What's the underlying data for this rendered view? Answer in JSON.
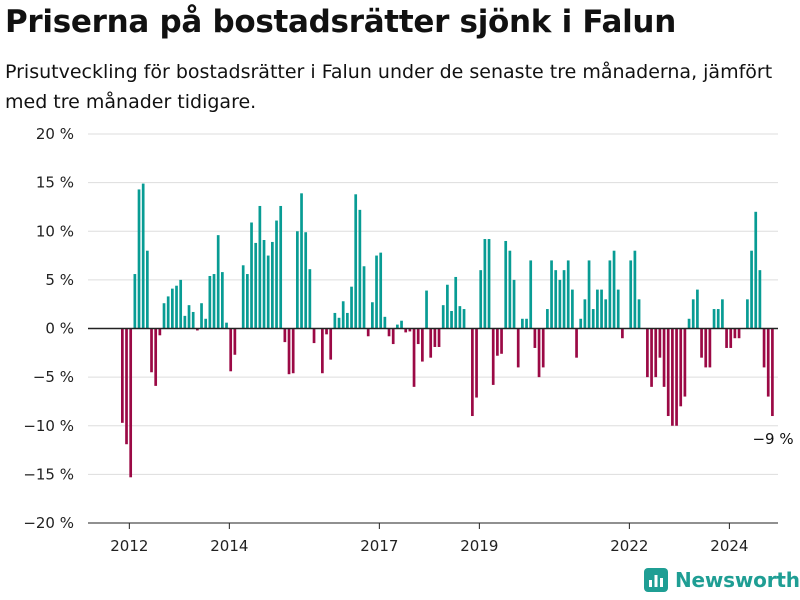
{
  "title": "Priserna på bostadsrätter sjönk i Falun",
  "subtitle": "Prisutveckling för bostadsrätter i Falun under de senaste tre månaderna, jämfört med tre månader tidigare.",
  "brand": {
    "name": "Newsworthy",
    "color": "#1f9e94"
  },
  "colors": {
    "positive": "#089c94",
    "negative": "#9b0945",
    "zero_line": "#222222",
    "grid": "#dddddd"
  },
  "chart_data": {
    "type": "bar",
    "x_start": "2011-11",
    "x_end": "2024-11",
    "x_ticks": [
      {
        "date": "2012-01",
        "label": "2012"
      },
      {
        "date": "2014-01",
        "label": "2014"
      },
      {
        "date": "2017-01",
        "label": "2017"
      },
      {
        "date": "2019-01",
        "label": "2019"
      },
      {
        "date": "2022-01",
        "label": "2022"
      },
      {
        "date": "2024-01",
        "label": "2024"
      }
    ],
    "ylim": [
      -20,
      20
    ],
    "y_ticks": [
      {
        "value": 20,
        "label": "20 %"
      },
      {
        "value": 15,
        "label": "15 %"
      },
      {
        "value": 10,
        "label": "10 %"
      },
      {
        "value": 5,
        "label": "5 %"
      },
      {
        "value": 0,
        "label": "0 %"
      },
      {
        "value": -5,
        "label": "−5 %"
      },
      {
        "value": -10,
        "label": "−10 %"
      },
      {
        "value": -15,
        "label": "−15 %"
      },
      {
        "value": -20,
        "label": "−20 %"
      }
    ],
    "grid": true,
    "annotation": {
      "label": "−9 %"
    },
    "series": [
      {
        "values": [
          -9.7,
          -11.9,
          -15.3,
          5.6,
          14.3,
          14.9,
          8.0,
          -4.5,
          -5.9,
          -0.7,
          2.6,
          3.3,
          4.1,
          4.4,
          5.0,
          1.3,
          2.4,
          1.7,
          -0.2,
          2.6,
          1.0,
          5.4,
          5.6,
          9.6,
          5.8,
          0.6,
          -4.4,
          -2.7,
          0.0,
          6.5,
          5.6,
          10.9,
          8.8,
          12.6,
          9.1,
          7.5,
          8.9,
          11.1,
          12.6,
          -1.4,
          -4.7,
          -4.6,
          10.0,
          13.9,
          9.9,
          6.1,
          -1.5,
          0.0,
          -4.6,
          -0.6,
          -3.2,
          1.6,
          1.1,
          2.8,
          1.6,
          4.3,
          13.8,
          12.2,
          6.4,
          -0.8,
          2.7,
          7.5,
          7.8,
          1.2,
          -0.8,
          -1.6,
          0.4,
          0.8,
          -0.4,
          -0.3,
          -6.0,
          -1.6,
          -3.4,
          3.9,
          -3.0,
          -1.9,
          -1.9,
          2.4,
          4.5,
          1.8,
          5.3,
          2.3,
          2.0,
          0.0,
          -9.0,
          -7.1,
          6.0,
          9.2,
          9.2,
          -5.8,
          -2.8,
          -2.6,
          9.0,
          8.0,
          5.0,
          -4.0,
          1.0,
          1.0,
          7.0,
          -2.0,
          -5.0,
          -4.0,
          2.0,
          7.0,
          6.0,
          5.0,
          6.0,
          7.0,
          4.0,
          -3.0,
          1.0,
          3.0,
          7.0,
          2.0,
          4.0,
          4.0,
          3.0,
          7.0,
          8.0,
          4.0,
          -1.0,
          0.0,
          7.0,
          8.0,
          3.0,
          0.0,
          -5.0,
          -6.0,
          -5.0,
          -3.0,
          -6.0,
          -9.0,
          -10.0,
          -10.0,
          -8.0,
          -7.0,
          1.0,
          3.0,
          4.0,
          -3.0,
          -4.0,
          -4.0,
          2.0,
          2.0,
          3.0,
          -2.0,
          -2.0,
          -1.0,
          -1.0,
          0.0,
          3.0,
          8.0,
          12.0,
          6.0,
          -4.0,
          -7.0,
          -9.0
        ]
      }
    ]
  }
}
